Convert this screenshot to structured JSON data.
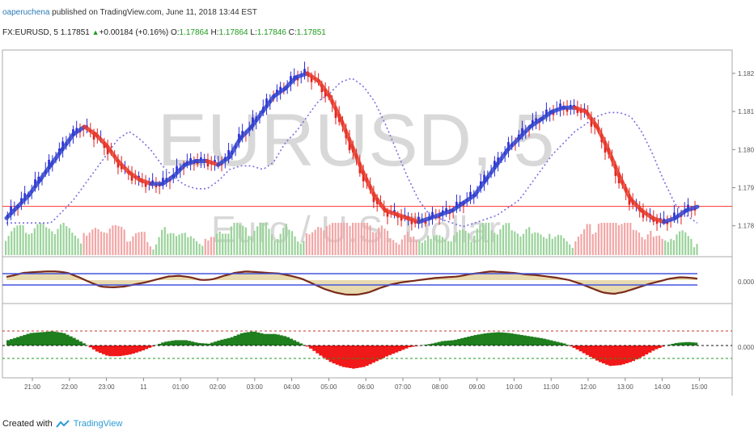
{
  "header": {
    "author": "oaperuchena",
    "published_text": " published on TradingView.com, June 11, 2018 13:44 EST"
  },
  "ohlc": {
    "symbol": "FX:EURUSD, 5",
    "last": "1.17851",
    "change": "+0.00184 (+0.16%)",
    "o_label": "O:",
    "o": "1.17864",
    "h_label": "H:",
    "h": "1.17864",
    "l_label": "L:",
    "l": "1.17846",
    "c_label": "C:",
    "c": "1.17851"
  },
  "watermark": {
    "symbol": "EURUSD, 5",
    "description": "Euro / U.S. Dollar"
  },
  "colors": {
    "accent": "#2a7ab8",
    "up": "#1f9a1f",
    "bull_candle": "#2b2bd8",
    "bear_candle": "#e02020",
    "price_line": "#ff3333",
    "ribbon_up": "#3344cc",
    "ribbon_down": "#e83a2a",
    "histogram_pos": "#1f7f1f",
    "histogram_neg": "#f01818"
  },
  "chart_data": {
    "type": "line",
    "title": "FX:EURUSD, 5",
    "x_ticks": [
      "21:00",
      "22:00",
      "23:00",
      "11",
      "01:00",
      "02:00",
      "03:00",
      "04:00",
      "05:00",
      "06:00",
      "07:00",
      "08:00",
      "09:00",
      "10:00",
      "11:00",
      "12:00",
      "13:00",
      "14:00",
      "15:00"
    ],
    "y_ticks": [
      "1.18200",
      "1.18100",
      "1.18000",
      "1.17900",
      "1.17800"
    ],
    "ylim": [
      1.1774,
      1.1824
    ],
    "osc1_ticks": [
      "0.0000"
    ],
    "osc2_ticks": [
      "0.0000"
    ],
    "series": [
      {
        "values": [
          1.1782,
          1.1785,
          1.1788,
          1.1792,
          1.1796,
          1.18,
          1.1804,
          1.1806,
          1.1804,
          1.1801,
          1.1797,
          1.1794,
          1.1792,
          1.1791,
          1.1791,
          1.1793,
          1.1796,
          1.1797,
          1.1797,
          1.1796,
          1.1798,
          1.1803,
          1.1806,
          1.181,
          1.1814,
          1.1816,
          1.1819,
          1.182,
          1.1818,
          1.1814,
          1.1808,
          1.1801,
          1.1794,
          1.1788,
          1.1784,
          1.1783,
          1.1782,
          1.1781,
          1.1782,
          1.1783,
          1.1784,
          1.1786,
          1.1788,
          1.1792,
          1.1796,
          1.18,
          1.1803,
          1.1806,
          1.1808,
          1.181,
          1.1811,
          1.1811,
          1.181,
          1.1806,
          1.18,
          1.1793,
          1.1787,
          1.1784,
          1.1782,
          1.1781,
          1.1782,
          1.1784,
          1.1785
        ]
      }
    ],
    "current_price": 1.17851
  },
  "footer": {
    "created_with": "Created with",
    "brand": "TradingView"
  }
}
